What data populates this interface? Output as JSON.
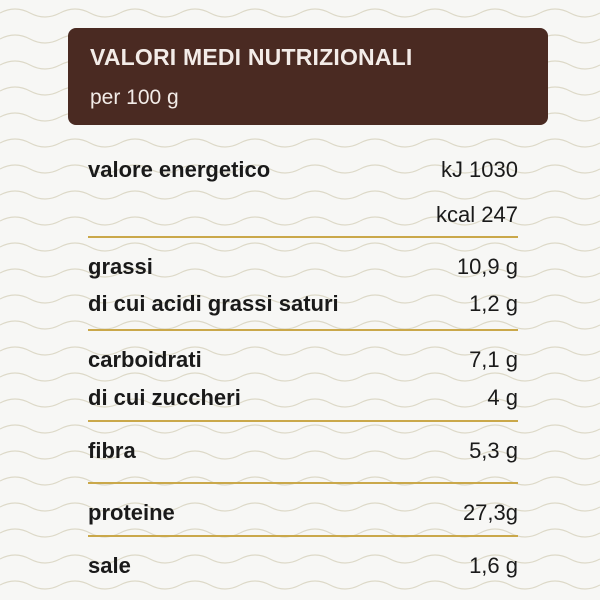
{
  "header": {
    "title": "VALORI MEDI NUTRIZIONALI",
    "subtitle": "per 100 g"
  },
  "groups": [
    {
      "rows": [
        {
          "label": "valore energetico",
          "value": "kJ 1030"
        },
        {
          "value": "kcal 247"
        }
      ]
    },
    {
      "rows": [
        {
          "label": "grassi",
          "value": "10,9 g"
        },
        {
          "label": "di cui acidi grassi saturi",
          "value": "1,2 g"
        }
      ]
    },
    {
      "rows": [
        {
          "label": "carboidrati",
          "value": "7,1 g"
        },
        {
          "label": "di cui zuccheri",
          "value": "4 g"
        }
      ]
    },
    {
      "rows": [
        {
          "label": "fibra",
          "value": "5,3 g"
        }
      ]
    },
    {
      "rows": [
        {
          "label": "proteine",
          "value": "27,3g"
        }
      ]
    },
    {
      "rows": [
        {
          "label": "sale",
          "value": "1,6 g"
        }
      ]
    }
  ]
}
